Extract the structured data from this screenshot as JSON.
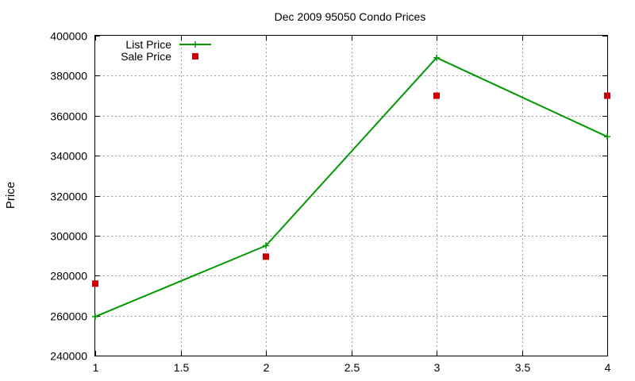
{
  "chart_data": {
    "type": "line",
    "title": "Dec 2009 95050 Condo Prices",
    "xlabel": "",
    "ylabel": "Price",
    "xlim": [
      1,
      4
    ],
    "ylim": [
      240000,
      400000
    ],
    "x_ticks": [
      "1",
      "1.5",
      "2",
      "2.5",
      "3",
      "3.5",
      "4"
    ],
    "y_ticks": [
      "240000",
      "260000",
      "280000",
      "300000",
      "320000",
      "340000",
      "360000",
      "380000",
      "400000"
    ],
    "grid": true,
    "legend_position": "top-left",
    "series": [
      {
        "name": "List Price",
        "kind": "line-with-points",
        "color": "#009900",
        "x": [
          1,
          2,
          3,
          4
        ],
        "y": [
          259500,
          295000,
          389000,
          349500
        ]
      },
      {
        "name": "Sale Price",
        "kind": "points",
        "color": "#cc0000",
        "x": [
          1,
          2,
          3,
          4
        ],
        "y": [
          276000,
          289500,
          370000,
          370000
        ]
      }
    ]
  }
}
